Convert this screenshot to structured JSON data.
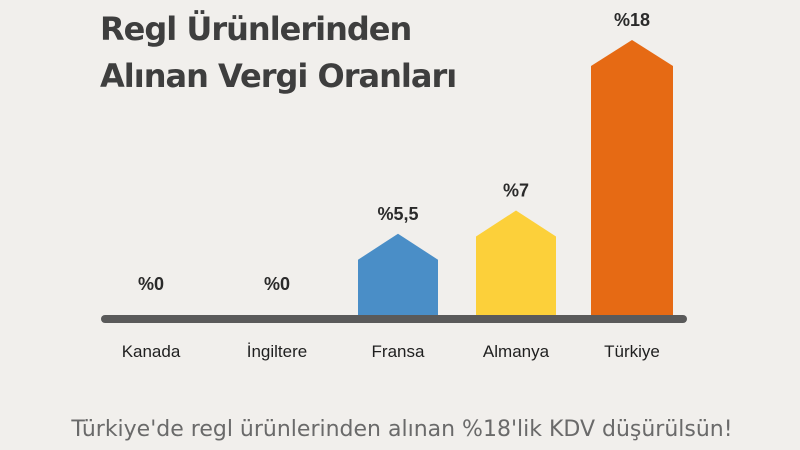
{
  "chart_data": {
    "type": "bar",
    "title_lines": [
      "Regl Ürünlerinden",
      "Alınan Vergi Oranları"
    ],
    "categories": [
      "Kanada",
      "İngiltere",
      "Fransa",
      "Almanya",
      "Türkiye"
    ],
    "values": [
      0,
      0,
      5.5,
      7,
      18
    ],
    "value_labels": [
      "%0",
      "%0",
      "%5,5",
      "%7",
      "%18"
    ],
    "colors": [
      "#f1efec",
      "#f1efec",
      "#4a8ec7",
      "#fcd03a",
      "#e66a14"
    ],
    "baseline_color": "#5a5a5a",
    "grid": false,
    "legend": "none",
    "ylim": [
      0,
      18
    ]
  },
  "footer": "Türkiye'de regl ürünlerinden alınan %18'lik KDV düşürülsün!"
}
